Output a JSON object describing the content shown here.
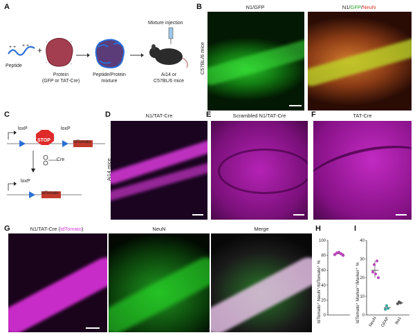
{
  "panels": {
    "A": {
      "letter": "A",
      "peptide_label": "Peptide",
      "protein_label_1": "Protein",
      "protein_label_2": "(GFP or TAT-Cre)",
      "mixture_label_1": "Peptide/Protein",
      "mixture_label_2": "mixture",
      "injection_label": "Mixture injection",
      "mouse_label_1": "Ai14 or",
      "mouse_label_2": "C57BL/6 mice",
      "plus_sign": "+"
    },
    "B": {
      "letter": "B",
      "title_left": "N1/GFP",
      "title_right_n1": "N1/",
      "title_right_gfp": "GFP",
      "title_right_slash": "/",
      "title_right_neun": "NeuN",
      "row_label": "C57BL/6 mice"
    },
    "C": {
      "letter": "C",
      "loxp_1": "loxP",
      "loxp_2": "loxP",
      "loxp_3": "loxP",
      "stop": "STOP",
      "tdtomato_1": "tdTomato",
      "tdtomato_2": "tdTomato",
      "cre": "Cre"
    },
    "D": {
      "letter": "D",
      "title": "N1/TAT-Cre",
      "row_label": "Ai14 mice"
    },
    "E": {
      "letter": "E",
      "title": "Scrambled N1/TAT-Cre"
    },
    "F": {
      "letter": "F",
      "title": "TAT-Cre"
    },
    "G": {
      "letter": "G",
      "title_left_prefix": "N1/TAT-Cre (",
      "title_left_td": "tdTomato",
      "title_left_suffix": ")",
      "title_mid": "NeuN",
      "title_right": "Merge"
    },
    "H": {
      "letter": "H",
      "ylabel": "tdTomato⁺ NeuN⁺/tdTomato⁺ %"
    },
    "I": {
      "letter": "I",
      "ylabel": "tdTomato⁺ Marker⁺/Marker⁺ %"
    }
  },
  "colors": {
    "green": "#1fbf1f",
    "magenta": "#d21fd2",
    "red_label": "#e0301e",
    "td_label": "#d63ad6",
    "stop_red": "#e02a2a"
  },
  "chart_data": [
    {
      "type": "scatter",
      "panel": "H",
      "ylabel": "tdTomato⁺ NeuN⁺/tdTomato⁺ %",
      "ylim": [
        0,
        100
      ],
      "yticks": [
        0,
        20,
        40,
        60,
        80,
        100
      ],
      "points": [
        81,
        83,
        84,
        82,
        80
      ],
      "mean": 82,
      "color": "#b946b9"
    },
    {
      "type": "scatter",
      "panel": "I",
      "ylabel": "tdTomato⁺ Marker⁺/Marker⁺ %",
      "ylim": [
        0,
        40
      ],
      "yticks": [
        0,
        10,
        20,
        30,
        40
      ],
      "categories": [
        "NeuN",
        "GFAP",
        "Iba1"
      ],
      "series": [
        {
          "category": "NeuN",
          "points": [
            23,
            27,
            22,
            29,
            20
          ],
          "mean": 24,
          "color": "#b946b9"
        },
        {
          "category": "GFAP",
          "points": [
            3,
            5,
            3.5
          ],
          "mean": 4,
          "color": "#3aa59a"
        },
        {
          "category": "Iba1",
          "points": [
            6,
            7,
            6.5
          ],
          "mean": 6.5,
          "color": "#555555"
        }
      ]
    }
  ]
}
